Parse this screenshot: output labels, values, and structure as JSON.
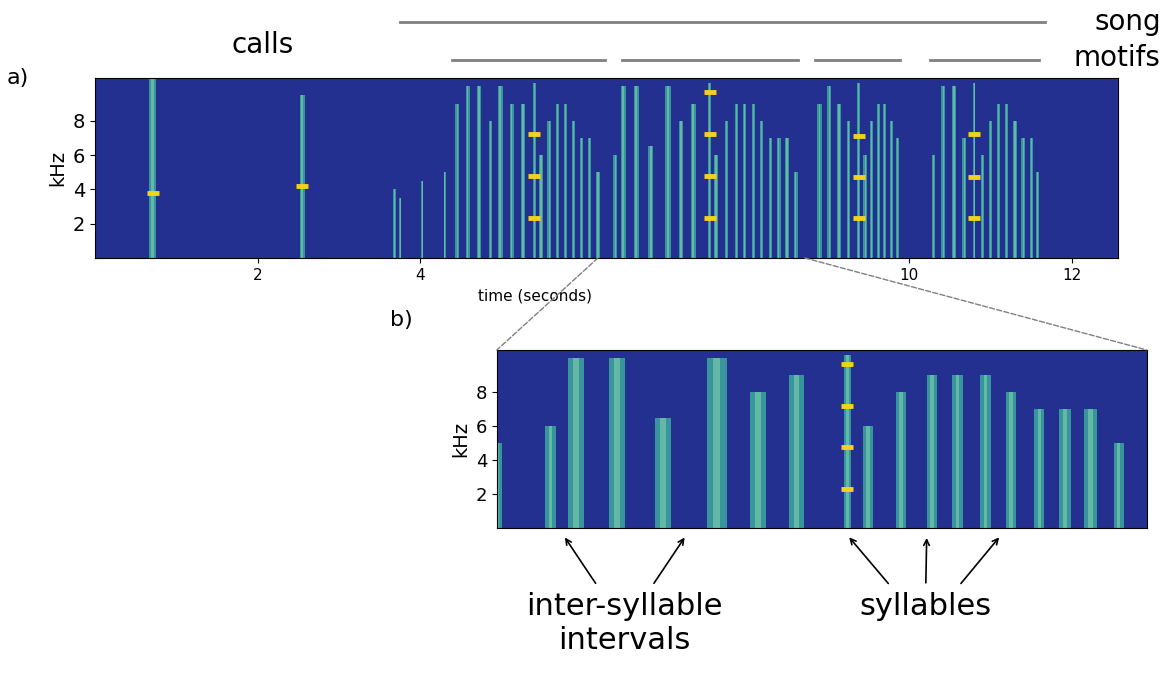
{
  "chart_data": [
    {
      "type": "spectrogram",
      "panel": "a)",
      "xlabel": "time (seconds)",
      "ylabel": "kHz",
      "xlim": [
        0,
        12.56
      ],
      "xticks": [
        2,
        4,
        10,
        12
      ],
      "ylim": [
        0,
        10.5
      ],
      "yticks": [
        2,
        4,
        6,
        8
      ],
      "labels": {
        "calls": "calls",
        "song": "song",
        "motifs": "motifs"
      },
      "song_span": [
        3.75,
        11.67
      ],
      "motif_spans": [
        [
          4.39,
          6.27
        ],
        [
          6.48,
          8.64
        ],
        [
          8.85,
          9.89
        ],
        [
          10.26,
          11.6
        ]
      ],
      "syllables": {
        "color": "#3fb8a4",
        "values": [
          [
            0.71,
            0.09,
            10.5
          ],
          [
            2.55,
            0.07,
            9.5
          ],
          [
            3.68,
            0.03,
            4.0
          ],
          [
            3.75,
            0.03,
            3.5
          ],
          [
            4.02,
            0.03,
            4.5
          ],
          [
            4.3,
            0.03,
            5.0
          ],
          [
            4.45,
            0.04,
            9.0
          ],
          [
            4.58,
            0.05,
            10.0
          ],
          [
            4.72,
            0.05,
            10.0
          ],
          [
            4.86,
            0.04,
            8.0
          ],
          [
            4.98,
            0.06,
            10.0
          ],
          [
            5.12,
            0.05,
            9.0
          ],
          [
            5.26,
            0.05,
            9.0
          ],
          [
            5.4,
            0.03,
            10.2
          ],
          [
            5.48,
            0.04,
            6.0
          ],
          [
            5.58,
            0.04,
            8.0
          ],
          [
            5.68,
            0.04,
            9.0
          ],
          [
            5.78,
            0.04,
            9.0
          ],
          [
            5.88,
            0.04,
            8.0
          ],
          [
            5.98,
            0.04,
            7.0
          ],
          [
            6.08,
            0.04,
            7.0
          ],
          [
            6.18,
            0.04,
            5.0
          ],
          [
            6.39,
            0.04,
            6.0
          ],
          [
            6.49,
            0.06,
            10.0
          ],
          [
            6.65,
            0.06,
            10.0
          ],
          [
            6.83,
            0.06,
            6.5
          ],
          [
            7.04,
            0.08,
            10.0
          ],
          [
            7.2,
            0.06,
            8.0
          ],
          [
            7.35,
            0.06,
            9.0
          ],
          [
            7.55,
            0.03,
            10.2
          ],
          [
            7.63,
            0.04,
            6.0
          ],
          [
            7.76,
            0.04,
            8.0
          ],
          [
            7.88,
            0.04,
            9.0
          ],
          [
            7.98,
            0.04,
            9.0
          ],
          [
            8.09,
            0.04,
            9.0
          ],
          [
            8.19,
            0.04,
            8.0
          ],
          [
            8.3,
            0.04,
            7.0
          ],
          [
            8.4,
            0.05,
            7.0
          ],
          [
            8.5,
            0.05,
            7.0
          ],
          [
            8.61,
            0.04,
            5.0
          ],
          [
            8.9,
            0.05,
            9.0
          ],
          [
            9.02,
            0.05,
            10.0
          ],
          [
            9.14,
            0.05,
            9.0
          ],
          [
            9.26,
            0.04,
            8.0
          ],
          [
            9.38,
            0.03,
            10.2
          ],
          [
            9.46,
            0.04,
            6.0
          ],
          [
            9.54,
            0.04,
            8.0
          ],
          [
            9.62,
            0.04,
            9.0
          ],
          [
            9.7,
            0.04,
            9.0
          ],
          [
            9.78,
            0.04,
            8.0
          ],
          [
            9.86,
            0.04,
            7.0
          ],
          [
            10.3,
            0.04,
            6.0
          ],
          [
            10.42,
            0.05,
            10.0
          ],
          [
            10.55,
            0.05,
            10.0
          ],
          [
            10.68,
            0.05,
            7.0
          ],
          [
            10.8,
            0.03,
            10.2
          ],
          [
            10.9,
            0.04,
            6.0
          ],
          [
            11.0,
            0.04,
            8.0
          ],
          [
            11.1,
            0.04,
            9.0
          ],
          [
            11.2,
            0.04,
            9.0
          ],
          [
            11.3,
            0.04,
            8.0
          ],
          [
            11.4,
            0.04,
            7.0
          ],
          [
            11.5,
            0.04,
            7.0
          ],
          [
            11.58,
            0.04,
            5.0
          ]
        ]
      },
      "tones": {
        "color": "#f2d21b",
        "values": [
          [
            0.71,
            3.8
          ],
          [
            2.55,
            4.2
          ],
          [
            5.4,
            2.3
          ],
          [
            5.4,
            4.8
          ],
          [
            5.4,
            7.2
          ],
          [
            7.55,
            2.3
          ],
          [
            7.55,
            4.8
          ],
          [
            7.55,
            7.2
          ],
          [
            7.55,
            9.7
          ],
          [
            9.38,
            2.3
          ],
          [
            9.38,
            4.7
          ],
          [
            9.38,
            7.1
          ],
          [
            10.8,
            2.3
          ],
          [
            10.8,
            4.7
          ],
          [
            10.8,
            7.2
          ]
        ]
      }
    },
    {
      "type": "spectrogram",
      "panel": "b)",
      "ylabel": "kHz",
      "xlim": [
        6.18,
        8.72
      ],
      "ylim": [
        0,
        10.5
      ],
      "yticks": [
        2,
        4,
        6,
        8
      ],
      "tick_labels": "y",
      "annotations": [
        {
          "text": "inter-syllable\nintervals",
          "targets": [
            6.44,
            6.92
          ]
        },
        {
          "text": "syllables",
          "targets": [
            7.55,
            7.86,
            8.15
          ]
        }
      ]
    }
  ]
}
